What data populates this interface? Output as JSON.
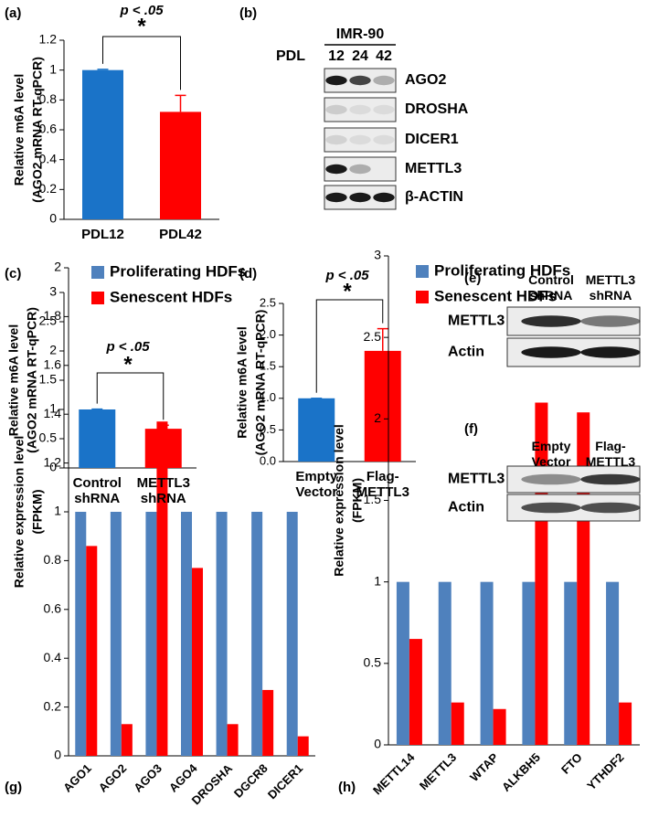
{
  "chart_data": [
    {
      "type": "bar",
      "panel": "(a)",
      "ylabel": [
        "Relative m6A level",
        "(AGO2 mRNA RT-qPCR)"
      ],
      "categories": [
        "PDL12",
        "PDL42"
      ],
      "values": [
        1,
        0.72
      ],
      "errors": [
        0.005,
        0.11
      ],
      "colors": [
        "#1a73c8",
        "#ff0000"
      ],
      "ylim": [
        0,
        1.2
      ],
      "yticks": [
        0,
        0.2,
        0.4,
        0.6,
        0.8,
        1,
        1.2
      ],
      "annotation": "p < .05",
      "significance": "*"
    },
    {
      "type": "bar",
      "panel": "(c)",
      "ylabel": [
        "Relative m6A level",
        "(AGO2 mRNA RT-qPCR)"
      ],
      "categories": [
        "Control shRNA",
        "METTL3 shRNA"
      ],
      "values": [
        1,
        0.67
      ],
      "errors": [
        0.005,
        0.06
      ],
      "colors": [
        "#1a73c8",
        "#ff0000"
      ],
      "ylim": [
        0,
        3
      ],
      "yticks": [
        0,
        0.5,
        1,
        1.5,
        2,
        2.5,
        3
      ],
      "annotation": "p < .05",
      "significance": "*"
    },
    {
      "type": "bar",
      "panel": "(d)",
      "ylabel": [
        "Relative m6A level",
        "(AGO2 mRNA RT-qPCR)"
      ],
      "categories": [
        "Empty Vector",
        "Flag-METTL3"
      ],
      "values": [
        1,
        1.75
      ],
      "errors": [
        0,
        0.35
      ],
      "colors": [
        "#1a73c8",
        "#ff0000"
      ],
      "ylim": [
        0,
        2.5
      ],
      "yticks": [
        {
          "value": 0,
          "label": "0.0"
        },
        {
          "value": 0.5,
          "label": "0.5"
        },
        {
          "value": 1,
          "label": "1.0"
        },
        {
          "value": 1.5,
          "label": "1.5"
        },
        {
          "value": 2,
          "label": "2.0"
        },
        {
          "value": 2.5,
          "label": "2.5"
        }
      ],
      "annotation": "p < .05",
      "significance": "*"
    },
    {
      "type": "grouped-bar",
      "panel": "(g)",
      "ylabel": [
        "Relative expression level",
        "(FPKM)"
      ],
      "categories": [
        "AGO1",
        "AGO2",
        "AGO3",
        "AGO4",
        "DROSHA",
        "DGCR8",
        "DICER1"
      ],
      "series": [
        {
          "name": "Proliferating HDFs",
          "color": "#4f81bd",
          "values": [
            1,
            1,
            1,
            1,
            1,
            1,
            1
          ]
        },
        {
          "name": "Senescent HDFs",
          "color": "#ff0000",
          "values": [
            0.86,
            0.13,
            1.37,
            0.77,
            0.13,
            0.27,
            0.08
          ]
        }
      ],
      "ylim": [
        0,
        2
      ],
      "yticks": [
        0,
        0.2,
        0.4,
        0.6,
        0.8,
        1,
        1.2,
        1.4,
        1.6,
        1.8,
        2
      ],
      "legend": "upper left"
    },
    {
      "type": "grouped-bar",
      "panel": "(h)",
      "ylabel": [
        "Relative expression level",
        "(FPKM)"
      ],
      "categories": [
        "METTL14",
        "METTL3",
        "WTAP",
        "ALKBH5",
        "FTO",
        "YTHDF2"
      ],
      "series": [
        {
          "name": "Proliferating HDFs",
          "color": "#4f81bd",
          "values": [
            1,
            1,
            1,
            1,
            1,
            1
          ]
        },
        {
          "name": "Senescent HDFs",
          "color": "#ff0000",
          "values": [
            0.65,
            0.26,
            0.22,
            2.1,
            2.04,
            0.26
          ]
        }
      ],
      "ylim": [
        0,
        3
      ],
      "yticks": [
        0,
        0.5,
        1,
        1.5,
        2,
        2.5,
        3
      ],
      "legend": "upper left"
    }
  ],
  "blots": [
    {
      "panel": "(b)",
      "header": "IMR-90",
      "lane_title": "PDL",
      "lanes": [
        "12",
        "24",
        "42"
      ],
      "rows": [
        "AGO2",
        "DROSHA",
        "DICER1",
        "METTL3",
        "β-ACTIN"
      ]
    },
    {
      "panel": "(e)",
      "lanes": [
        "Control shRNA",
        "METTL3 shRNA"
      ],
      "rows": [
        "METTL3",
        "Actin"
      ]
    },
    {
      "panel": "(f)",
      "lanes": [
        "Empty Vector",
        "Flag-METTL3"
      ],
      "rows": [
        "METTL3",
        "Actin"
      ]
    }
  ]
}
